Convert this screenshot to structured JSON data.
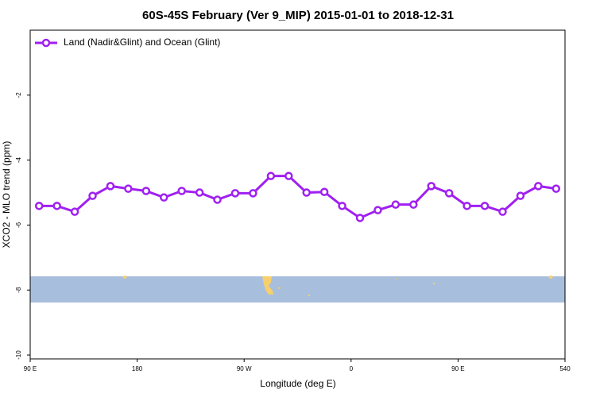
{
  "chart_data": {
    "type": "line",
    "title": "60S-45S February (Ver 9_MIP)   2015-01-01 to 2018-12-31",
    "xlabel": "Longitude (deg E)",
    "ylabel": "XCO2 - MLO trend (ppm)",
    "x": [
      97.5,
      112.5,
      127.5,
      142.5,
      157.5,
      172.5,
      187.5,
      202.5,
      217.5,
      232.5,
      247.5,
      262.5,
      277.5,
      292.5,
      307.5,
      322.5,
      337.5,
      352.5,
      367.5,
      382.5,
      397.5,
      412.5,
      427.5,
      442.5,
      457.5,
      472.5,
      487.5,
      502.5,
      517.5,
      532.5
    ],
    "series": [
      {
        "name": "Land (Nadir&Glint) and Ocean (Glint)",
        "color": "#a020f0",
        "values": [
          -5.41,
          -5.41,
          -5.59,
          -5.1,
          -4.8,
          -4.88,
          -4.95,
          -5.15,
          -4.95,
          -5.0,
          -5.22,
          -5.02,
          -5.02,
          -4.49,
          -4.49,
          -5.0,
          -4.98,
          -5.41,
          -5.78,
          -5.54,
          -5.37,
          -5.37,
          -4.8,
          -5.02,
          -5.41,
          -5.41,
          -5.59,
          -5.1,
          -4.8,
          -4.88
        ]
      }
    ],
    "xlim": [
      90,
      540
    ],
    "xticks": [
      {
        "value": 90,
        "label": "90 E"
      },
      180,
      {
        "value": 270,
        "label": "90 W"
      },
      {
        "value": 360,
        "label": "0"
      },
      {
        "value": 450,
        "label": "90 E"
      },
      540
    ],
    "ylim": [
      -10.12,
      0
    ],
    "yticks": [
      -10,
      -8,
      -6,
      -4,
      -2
    ],
    "legend": "upper left"
  }
}
